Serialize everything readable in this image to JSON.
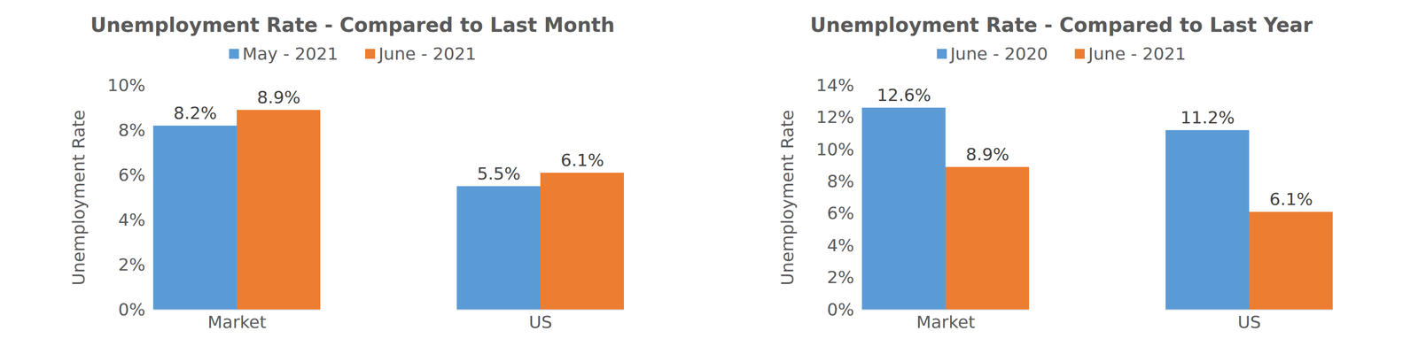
{
  "chart_data": [
    {
      "type": "bar",
      "title": "Unemployment Rate - Compared to Last Month",
      "y_label": "Unemployment Rate",
      "categories": [
        "Market",
        "US"
      ],
      "series": [
        {
          "name": "May - 2021",
          "color": "#5b9bd5",
          "values": [
            8.2,
            5.5
          ],
          "value_labels": [
            "8.2%",
            "5.5%"
          ]
        },
        {
          "name": "June - 2021",
          "color": "#ed7d31",
          "values": [
            8.9,
            6.1
          ],
          "value_labels": [
            "8.9%",
            "6.1%"
          ]
        }
      ],
      "ylim": [
        0,
        10
      ],
      "yticks": [
        {
          "value": 0,
          "label": "0%"
        },
        {
          "value": 2,
          "label": "2%"
        },
        {
          "value": 4,
          "label": "4%"
        },
        {
          "value": 6,
          "label": "6%"
        },
        {
          "value": 8,
          "label": "8%"
        },
        {
          "value": 10,
          "label": "10%"
        }
      ],
      "grid": false,
      "legend": "top",
      "data_labels": true
    },
    {
      "type": "bar",
      "title": "Unemployment Rate - Compared to Last Year",
      "y_label": "Unemployment Rate",
      "categories": [
        "Market",
        "US"
      ],
      "series": [
        {
          "name": "June - 2020",
          "color": "#5b9bd5",
          "values": [
            12.6,
            11.2
          ],
          "value_labels": [
            "12.6%",
            "11.2%"
          ]
        },
        {
          "name": "June - 2021",
          "color": "#ed7d31",
          "values": [
            8.9,
            6.1
          ],
          "value_labels": [
            "8.9%",
            "6.1%"
          ]
        }
      ],
      "ylim": [
        0,
        14
      ],
      "yticks": [
        {
          "value": 0,
          "label": "0%"
        },
        {
          "value": 2,
          "label": "2%"
        },
        {
          "value": 4,
          "label": "4%"
        },
        {
          "value": 6,
          "label": "6%"
        },
        {
          "value": 8,
          "label": "8%"
        },
        {
          "value": 10,
          "label": "10%"
        },
        {
          "value": 12,
          "label": "12%"
        },
        {
          "value": 14,
          "label": "14%"
        }
      ],
      "grid": false,
      "legend": "top",
      "data_labels": true
    }
  ]
}
